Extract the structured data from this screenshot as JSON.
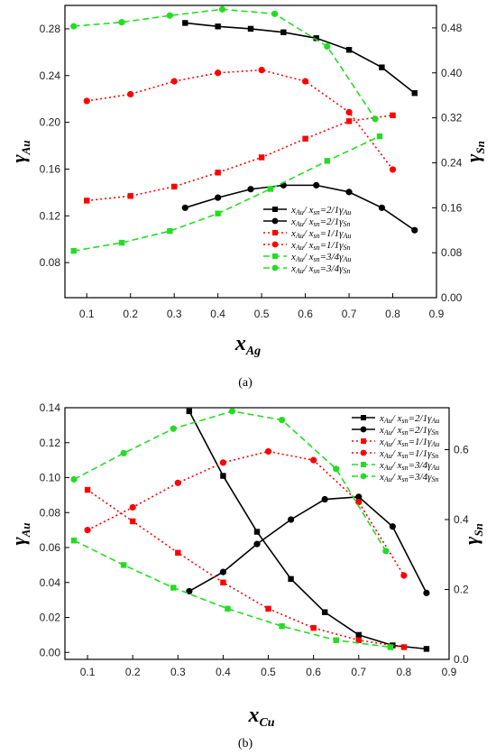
{
  "chart_data": [
    {
      "type": "line",
      "caption": "(a)",
      "xlabel": "x",
      "xlabel_sub": "Ag",
      "ylabel_left": "γ",
      "ylabel_left_sub": "Au",
      "ylabel_right": "γ",
      "ylabel_right_sub": "Sn",
      "xlim": [
        0.05,
        0.9
      ],
      "ylim_left": [
        0.05,
        0.3
      ],
      "ylim_right": [
        0.0,
        0.52
      ],
      "x_ticks": [
        "0.1",
        "0.2",
        "0.3",
        "0.4",
        "0.5",
        "0.6",
        "0.7",
        "0.8",
        "0.9"
      ],
      "y_left_ticks": [
        "0.08",
        "0.12",
        "0.16",
        "0.20",
        "0.24",
        "0.28"
      ],
      "y_right_ticks": [
        "0.00",
        "0.08",
        "0.16",
        "0.24",
        "0.32",
        "0.40",
        "0.48"
      ],
      "legend_position": "lower-right",
      "series": [
        {
          "label": "x_Au/ x_sn=2/1γ_Au",
          "lead": "x",
          "s1": "Au",
          "mid": "/ x",
          "s2": "sn",
          "ratio": "=2/1γ",
          "s3": "Au",
          "color": "#000000",
          "dash": "solid",
          "marker": "square",
          "axis": "left",
          "x": [
            0.325,
            0.4,
            0.475,
            0.55,
            0.625,
            0.7,
            0.775,
            0.85
          ],
          "y": [
            0.285,
            0.282,
            0.28,
            0.277,
            0.272,
            0.262,
            0.247,
            0.225
          ]
        },
        {
          "label": "x_Au/ x_sn=2/1γ_Sn",
          "lead": "x",
          "s1": "Au",
          "mid": "/ x",
          "s2": "sn",
          "ratio": "=2/1γ",
          "s3": "Sn",
          "color": "#000000",
          "dash": "solid",
          "marker": "circle",
          "axis": "right",
          "x": [
            0.325,
            0.4,
            0.475,
            0.55,
            0.625,
            0.7,
            0.775,
            0.85
          ],
          "y": [
            0.16,
            0.178,
            0.193,
            0.2,
            0.2,
            0.188,
            0.16,
            0.12
          ]
        },
        {
          "label": "x_Au/ x_sn=1/1γ_Au",
          "lead": "x",
          "s1": "Au",
          "mid": "/ x",
          "s2": "sn",
          "ratio": "=1/1γ",
          "s3": "Au",
          "color": "#ff0000",
          "dash": "dot",
          "marker": "square",
          "axis": "left",
          "x": [
            0.1,
            0.2,
            0.3,
            0.4,
            0.5,
            0.6,
            0.7,
            0.8
          ],
          "y": [
            0.133,
            0.137,
            0.145,
            0.157,
            0.17,
            0.186,
            0.201,
            0.206
          ]
        },
        {
          "label": "x_Au/ x_sn=1/1γ_Sn",
          "lead": "x",
          "s1": "Au",
          "mid": "/ x",
          "s2": "sn",
          "ratio": "=1/1γ",
          "s3": "Sn",
          "color": "#ff0000",
          "dash": "dot",
          "marker": "circle",
          "axis": "right",
          "x": [
            0.1,
            0.2,
            0.3,
            0.4,
            0.5,
            0.6,
            0.7,
            0.8
          ],
          "y": [
            0.35,
            0.362,
            0.385,
            0.4,
            0.405,
            0.385,
            0.33,
            0.228
          ]
        },
        {
          "label": "x_Au/ x_sn=3/4γ_Au",
          "lead": "x",
          "s1": "Au",
          "mid": "/ x",
          "s2": "sn",
          "ratio": "=3/4γ",
          "s3": "Au",
          "color": "#22dd22",
          "dash": "dash",
          "marker": "square",
          "axis": "left",
          "x": [
            0.07,
            0.18,
            0.29,
            0.4,
            0.52,
            0.65,
            0.77
          ],
          "y": [
            0.09,
            0.097,
            0.107,
            0.122,
            0.143,
            0.167,
            0.188
          ]
        },
        {
          "label": "x_Au/ x_sn=3/4γ_Sn",
          "lead": "x",
          "s1": "Au",
          "mid": "/ x",
          "s2": "sn",
          "ratio": "=3/4γ",
          "s3": "Sn",
          "color": "#22dd22",
          "dash": "dash",
          "marker": "circle",
          "axis": "right",
          "x": [
            0.07,
            0.18,
            0.29,
            0.41,
            0.53,
            0.65,
            0.76
          ],
          "y": [
            0.483,
            0.49,
            0.502,
            0.513,
            0.505,
            0.447,
            0.318
          ]
        }
      ]
    },
    {
      "type": "line",
      "caption": "(b)",
      "xlabel": "x",
      "xlabel_sub": "Cu",
      "ylabel_left": "γ",
      "ylabel_left_sub": "Au",
      "ylabel_right": "γ",
      "ylabel_right_sub": "Sn",
      "xlim": [
        0.05,
        0.9
      ],
      "ylim_left": [
        -0.004,
        0.14
      ],
      "ylim_right": [
        0.0,
        0.72
      ],
      "x_ticks": [
        "0.1",
        "0.2",
        "0.3",
        "0.4",
        "0.5",
        "0.6",
        "0.7",
        "0.8",
        "0.9"
      ],
      "y_left_ticks": [
        "0.00",
        "0.02",
        "0.04",
        "0.06",
        "0.08",
        "0.10",
        "0.12",
        "0.14"
      ],
      "y_right_ticks": [
        "0.0",
        "0.2",
        "0.4",
        "0.6"
      ],
      "legend_position": "top-right",
      "series": [
        {
          "label": "x_Au/ x_sn=2/1γ_Au",
          "lead": "x",
          "s1": "Au",
          "mid": "/ x",
          "s2": "sn",
          "ratio": "=2/1γ",
          "s3": "Au",
          "color": "#000000",
          "dash": "solid",
          "marker": "square",
          "axis": "left",
          "x": [
            0.325,
            0.4,
            0.475,
            0.55,
            0.625,
            0.7,
            0.775,
            0.85
          ],
          "y": [
            0.138,
            0.101,
            0.069,
            0.042,
            0.023,
            0.01,
            0.004,
            0.002
          ]
        },
        {
          "label": "x_Au/ x_sn=2/1γ_Sn",
          "lead": "x",
          "s1": "Au",
          "mid": "/ x",
          "s2": "sn",
          "ratio": "=2/1γ",
          "s3": "Sn",
          "color": "#000000",
          "dash": "solid",
          "marker": "circle",
          "axis": "right",
          "x": [
            0.325,
            0.4,
            0.475,
            0.55,
            0.625,
            0.7,
            0.775,
            0.85
          ],
          "y": [
            0.195,
            0.25,
            0.33,
            0.4,
            0.458,
            0.465,
            0.38,
            0.19
          ]
        },
        {
          "label": "x_Au/ x_sn=1/1γ_Au",
          "lead": "x",
          "s1": "Au",
          "mid": "/ x",
          "s2": "sn",
          "ratio": "=1/1γ",
          "s3": "Au",
          "color": "#ff0000",
          "dash": "dot",
          "marker": "square",
          "axis": "left",
          "x": [
            0.1,
            0.2,
            0.3,
            0.4,
            0.5,
            0.6,
            0.7,
            0.8
          ],
          "y": [
            0.093,
            0.075,
            0.057,
            0.04,
            0.025,
            0.014,
            0.007,
            0.003
          ]
        },
        {
          "label": "x_Au/ x_sn=1/1γ_Sn",
          "lead": "x",
          "s1": "Au",
          "mid": "/ x",
          "s2": "sn",
          "ratio": "=1/1γ",
          "s3": "Sn",
          "color": "#ff0000",
          "dash": "dot",
          "marker": "circle",
          "axis": "right",
          "x": [
            0.1,
            0.2,
            0.3,
            0.4,
            0.5,
            0.6,
            0.7,
            0.8
          ],
          "y": [
            0.37,
            0.435,
            0.505,
            0.563,
            0.595,
            0.57,
            0.45,
            0.24
          ]
        },
        {
          "label": "x_Au/ x_sn=3/4γ_Au",
          "lead": "x",
          "s1": "Au",
          "mid": "/ x",
          "s2": "sn",
          "ratio": "=3/4γ",
          "s3": "Au",
          "color": "#22dd22",
          "dash": "dash",
          "marker": "square",
          "axis": "left",
          "x": [
            0.07,
            0.18,
            0.29,
            0.41,
            0.53,
            0.65,
            0.77
          ],
          "y": [
            0.064,
            0.05,
            0.037,
            0.025,
            0.015,
            0.007,
            0.003
          ]
        },
        {
          "label": "x_Au/ x_sn=3/4γ_Sn",
          "lead": "x",
          "s1": "Au",
          "mid": "/ x",
          "s2": "sn",
          "ratio": "=3/4γ",
          "s3": "Sn",
          "color": "#22dd22",
          "dash": "dash",
          "marker": "circle",
          "axis": "right",
          "x": [
            0.07,
            0.18,
            0.29,
            0.42,
            0.53,
            0.65,
            0.76
          ],
          "y": [
            0.515,
            0.59,
            0.66,
            0.71,
            0.685,
            0.545,
            0.31
          ]
        }
      ]
    }
  ]
}
